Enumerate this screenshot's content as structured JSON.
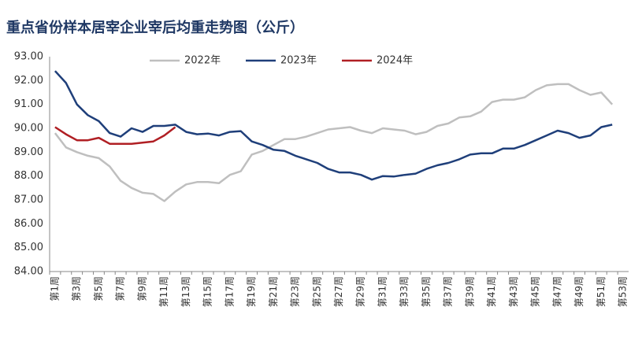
{
  "chart_data": {
    "type": "line",
    "title": "重点省份样本居宰企业宰后均重走势图（公斤）",
    "categories": [
      "第1周",
      null,
      "第3周",
      null,
      "第5周",
      null,
      "第7周",
      null,
      "第9周",
      null,
      "第11周",
      null,
      "第13周",
      null,
      "第15周",
      null,
      "第17周",
      null,
      "第19周",
      null,
      "第21周",
      null,
      "第23周",
      null,
      "第25周",
      null,
      "第27周",
      null,
      "第29周",
      null,
      "第31周",
      null,
      "第33周",
      null,
      "第35周",
      null,
      "第37周",
      null,
      "第39周",
      null,
      "第41周",
      null,
      "第43周",
      null,
      "第45周",
      null,
      "第47周",
      null,
      "第49周",
      null,
      "第51周",
      null,
      "第53周"
    ],
    "series": [
      {
        "name": "2022年",
        "color": "#bfbfbf",
        "values": [
          89.8,
          89.2,
          89.0,
          88.85,
          88.75,
          88.4,
          87.8,
          87.5,
          87.3,
          87.25,
          86.95,
          87.35,
          87.65,
          87.75,
          87.75,
          87.7,
          88.05,
          88.2,
          88.9,
          89.05,
          89.3,
          89.55,
          89.55,
          89.65,
          89.8,
          89.95,
          90.0,
          90.05,
          89.9,
          89.8,
          90.0,
          89.95,
          89.9,
          89.75,
          89.85,
          90.1,
          90.2,
          90.45,
          90.5,
          90.7,
          91.1,
          91.2,
          91.2,
          91.3,
          91.6,
          91.8,
          91.85,
          91.85,
          91.6,
          91.4,
          91.5,
          91.0,
          null
        ]
      },
      {
        "name": "2023年",
        "color": "#1f3f7a",
        "values": [
          92.4,
          91.9,
          91.0,
          90.55,
          90.3,
          89.8,
          89.65,
          90.0,
          89.85,
          90.1,
          90.1,
          90.15,
          89.85,
          89.75,
          89.78,
          89.7,
          89.85,
          89.88,
          89.45,
          89.3,
          89.1,
          89.05,
          88.85,
          88.7,
          88.55,
          88.3,
          88.15,
          88.15,
          88.05,
          87.85,
          88.0,
          87.98,
          88.05,
          88.1,
          88.3,
          88.45,
          88.55,
          88.7,
          88.9,
          88.95,
          88.95,
          89.15,
          89.15,
          89.3,
          89.5,
          89.7,
          89.9,
          89.8,
          89.6,
          89.7,
          90.05,
          90.15,
          null
        ]
      },
      {
        "name": "2024年",
        "color": "#b01f24",
        "values": [
          90.05,
          89.75,
          89.5,
          89.5,
          89.6,
          89.35,
          89.35,
          89.35,
          89.4,
          89.45,
          89.7,
          90.05,
          null,
          null,
          null,
          null,
          null,
          null,
          null,
          null,
          null,
          null,
          null,
          null,
          null,
          null,
          null,
          null,
          null,
          null,
          null,
          null,
          null,
          null,
          null,
          null,
          null,
          null,
          null,
          null,
          null,
          null,
          null,
          null,
          null,
          null,
          null,
          null,
          null,
          null,
          null,
          null,
          null
        ]
      }
    ],
    "ylim": [
      84,
      93
    ],
    "yticks": [
      {
        "value": 84,
        "label": "84.00"
      },
      {
        "value": 85,
        "label": "85.00"
      },
      {
        "value": 86,
        "label": "86.00"
      },
      {
        "value": 87,
        "label": "87.00"
      },
      {
        "value": 88,
        "label": "88.00"
      },
      {
        "value": 89,
        "label": "89.00"
      },
      {
        "value": 90,
        "label": "90.00"
      },
      {
        "value": 91,
        "label": "91.00"
      },
      {
        "value": 92,
        "label": "92.00"
      },
      {
        "value": 93,
        "label": "93.00"
      }
    ],
    "grid": false,
    "legend": "top"
  }
}
